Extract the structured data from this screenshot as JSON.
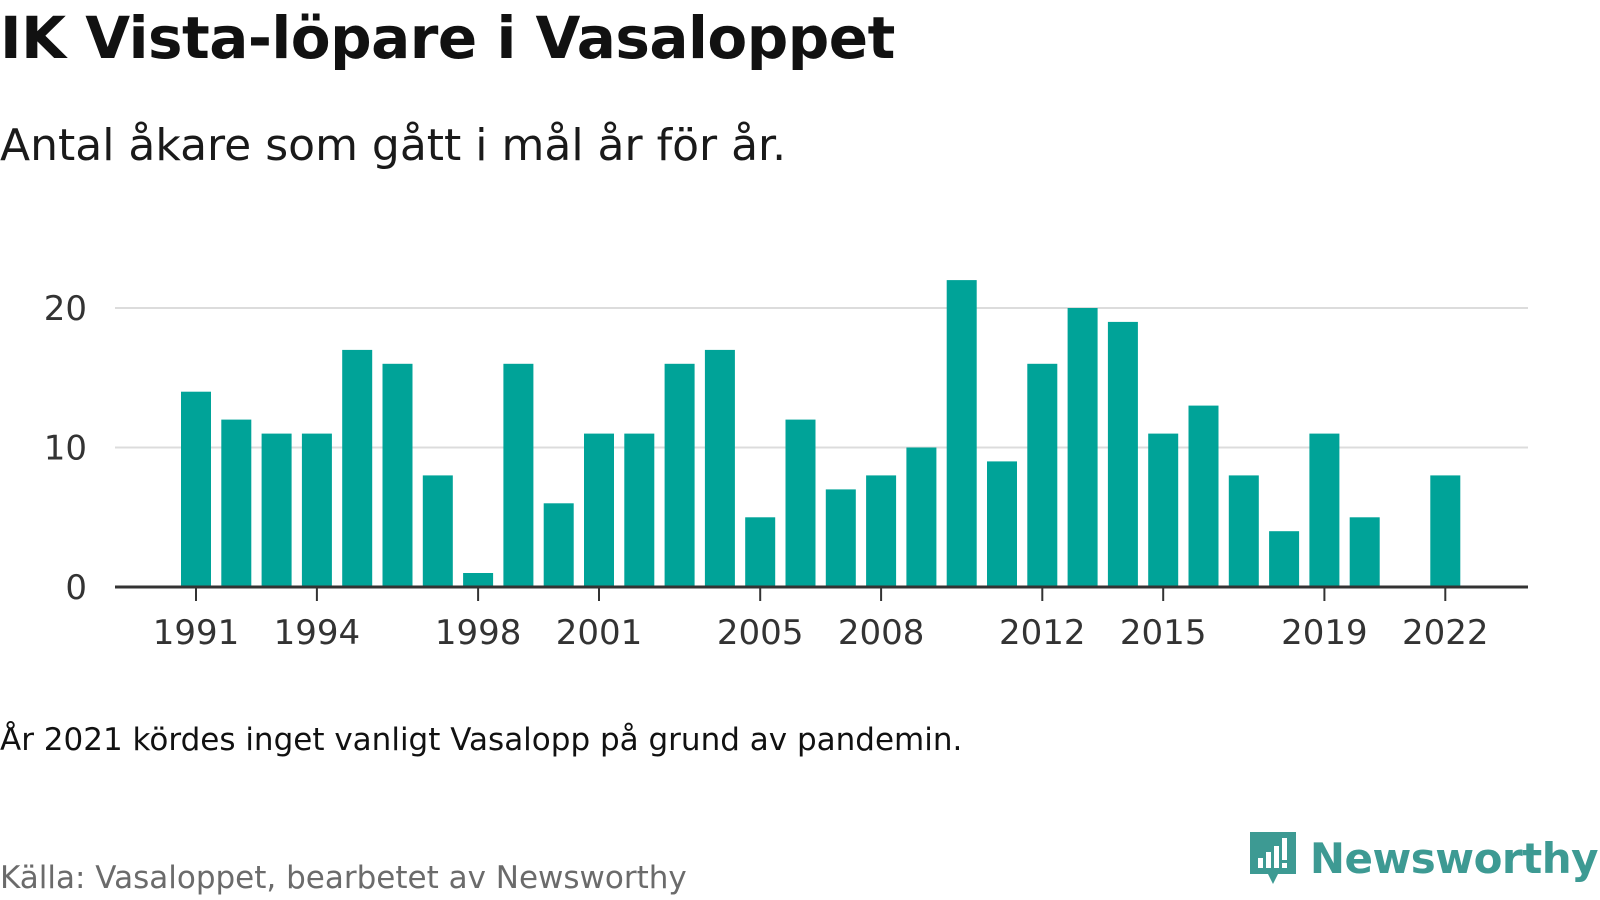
{
  "title": "IK Vista-löpare i Vasaloppet",
  "subtitle": "Antal åkare som gått i mål år för år.",
  "note": "År 2021 kördes inget vanligt Vasalopp på grund av pandemin.",
  "source": "Källa: Vasaloppet, bearbetet av Newsworthy",
  "brand": {
    "name": "Newsworthy",
    "icon": "newsworthy-logo-icon",
    "color": "#3d9a93"
  },
  "colors": {
    "bar": "#00a398",
    "grid": "#dcdcdc",
    "axis": "#333333",
    "tick_text": "#333333"
  },
  "chart_data": {
    "type": "bar",
    "title": "IK Vista-löpare i Vasaloppet",
    "subtitle": "Antal åkare som gått i mål år för år.",
    "xlabel": "",
    "ylabel": "",
    "ylim": [
      0,
      23
    ],
    "yticks": [
      0,
      10,
      20
    ],
    "grid": true,
    "x_tick_labels": [
      "1991",
      "1994",
      "1998",
      "2001",
      "2005",
      "2008",
      "2012",
      "2015",
      "2019",
      "2022"
    ],
    "categories": [
      1991,
      1992,
      1993,
      1994,
      1995,
      1996,
      1997,
      1998,
      1999,
      2000,
      2001,
      2002,
      2003,
      2004,
      2005,
      2006,
      2007,
      2008,
      2009,
      2010,
      2011,
      2012,
      2013,
      2014,
      2015,
      2016,
      2017,
      2018,
      2019,
      2020,
      2021,
      2022
    ],
    "values": [
      14,
      12,
      11,
      11,
      17,
      16,
      8,
      1,
      16,
      6,
      11,
      11,
      16,
      17,
      5,
      12,
      7,
      8,
      10,
      22,
      9,
      16,
      20,
      19,
      11,
      13,
      8,
      4,
      11,
      5,
      null,
      8
    ]
  }
}
